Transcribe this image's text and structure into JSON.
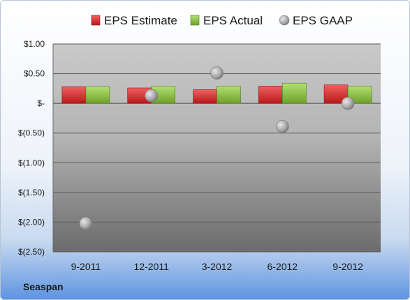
{
  "chart_data": {
    "type": "bar",
    "categories": [
      "9-2011",
      "12-2011",
      "3-2012",
      "6-2012",
      "9-2012"
    ],
    "series": [
      {
        "name": "EPS Estimate",
        "kind": "bar",
        "color": "#d42a2a",
        "values": [
          0.28,
          0.26,
          0.23,
          0.29,
          0.31
        ]
      },
      {
        "name": "EPS Actual",
        "kind": "bar",
        "color": "#8cc43c",
        "values": [
          0.28,
          0.29,
          0.29,
          0.34,
          0.29
        ]
      },
      {
        "name": "EPS GAAP",
        "kind": "scatter",
        "color": "#a9a9a9",
        "values": [
          -2.02,
          0.13,
          0.51,
          -0.39,
          0.0
        ]
      }
    ],
    "y_ticks": [
      {
        "value": 1.0,
        "label": "$1.00"
      },
      {
        "value": 0.5,
        "label": "$0.50"
      },
      {
        "value": 0.0,
        "label": "$-"
      },
      {
        "value": -0.5,
        "label": "$(0.50)"
      },
      {
        "value": -1.0,
        "label": "$(1.00)"
      },
      {
        "value": -1.5,
        "label": "$(1.50)"
      },
      {
        "value": -2.0,
        "label": "$(2.00)"
      },
      {
        "value": -2.5,
        "label": "$(2.50)"
      }
    ],
    "ylim": [
      -2.5,
      1.0
    ],
    "grid": true,
    "legend_position": "top"
  },
  "company": "Seaspan"
}
